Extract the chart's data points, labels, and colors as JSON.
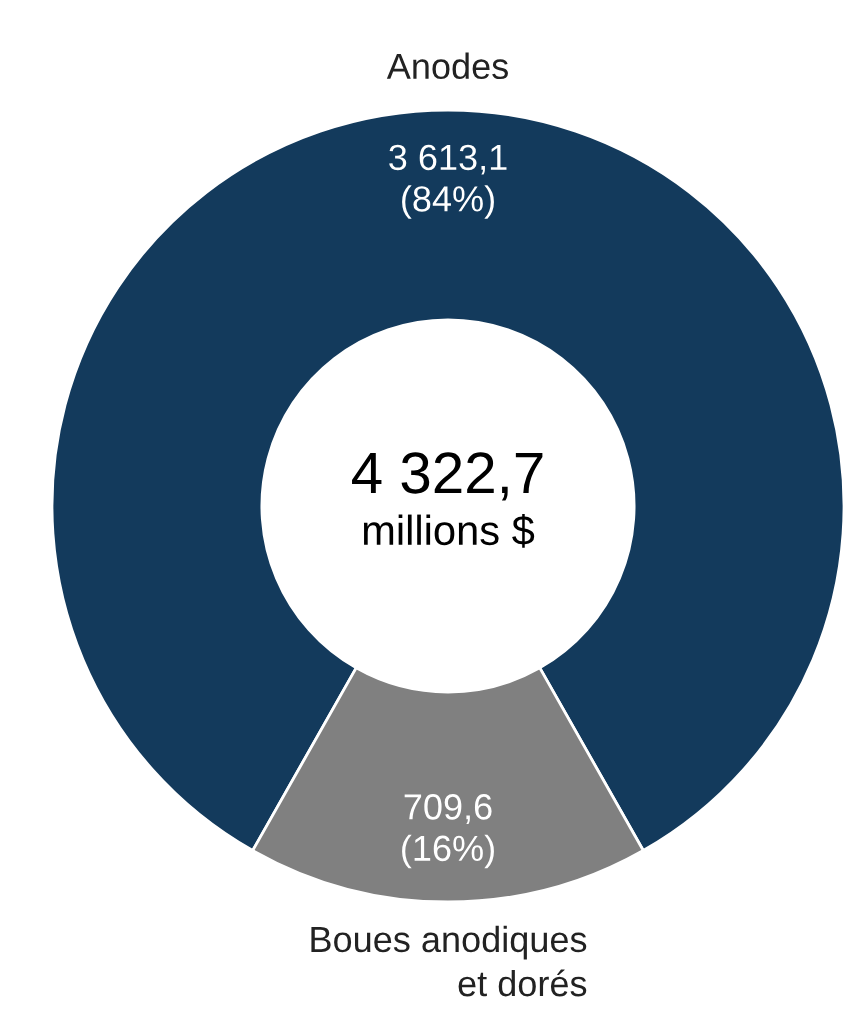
{
  "chart_data": {
    "type": "donut",
    "categories": [
      "Anodes",
      "Boues anodiques\net dorés"
    ],
    "values": [
      3613.1,
      709.6
    ],
    "colors": [
      "#133a5c",
      "#808080"
    ],
    "value_labels": [
      "3 613,1\n(84%)",
      "709,6\n(16%)"
    ],
    "annotations": [
      "4 322,7",
      "millions $"
    ]
  }
}
